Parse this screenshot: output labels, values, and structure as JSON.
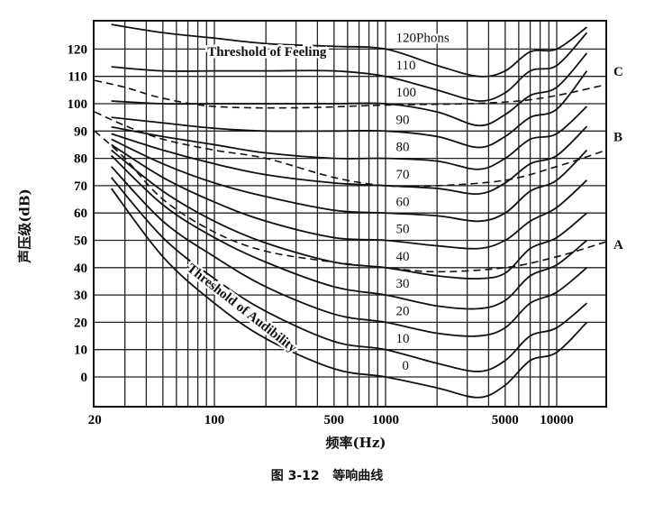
{
  "chart_data": {
    "type": "line",
    "title": "",
    "caption": "图 3-12   等响曲线",
    "xlabel": "频率(Hz)",
    "ylabel": "声压级(dB)",
    "xscale": "log",
    "xlim": [
      20,
      19500
    ],
    "ylim": [
      -11,
      130.5
    ],
    "grid": true,
    "x_ticks": [
      20,
      100,
      500,
      1000,
      5000,
      10000
    ],
    "x_tick_labels": [
      "20",
      "100",
      "500",
      "1000",
      "5000",
      "10000"
    ],
    "y_ticks": [
      0,
      10,
      20,
      30,
      40,
      50,
      60,
      70,
      80,
      90,
      100,
      110,
      120
    ],
    "y_tick_labels": [
      "0",
      "10",
      "20",
      "30",
      "40",
      "50",
      "60",
      "70",
      "80",
      "90",
      "100",
      "110",
      "120"
    ],
    "x": [
      25,
      50,
      100,
      200,
      500,
      1000,
      2000,
      3500,
      5000,
      7000,
      10000,
      15000
    ],
    "series": [
      {
        "name": "0",
        "label": "0",
        "values": [
          69,
          44,
          27,
          14,
          3,
          0,
          -4,
          -7.5,
          -3,
          6,
          9,
          20
        ]
      },
      {
        "name": "10",
        "label": "10",
        "values": [
          73,
          51,
          36,
          24,
          13,
          10,
          5,
          2,
          6,
          15,
          18,
          27
        ]
      },
      {
        "name": "20",
        "label": "20",
        "values": [
          77,
          57,
          44,
          33,
          23,
          20,
          16,
          15,
          18,
          27,
          31,
          40
        ]
      },
      {
        "name": "30",
        "label": "30",
        "values": [
          81,
          63,
          51,
          42,
          33,
          30,
          26,
          25,
          28,
          37,
          41,
          50
        ]
      },
      {
        "name": "40",
        "label": "40",
        "values": [
          83,
          68,
          57,
          49,
          42,
          40,
          37,
          36,
          38,
          47,
          51,
          60
        ]
      },
      {
        "name": "50",
        "label": "50",
        "values": [
          85,
          73,
          64,
          57,
          51,
          50,
          48,
          47,
          50,
          57,
          62,
          72
        ]
      },
      {
        "name": "60",
        "label": "60",
        "values": [
          87,
          78,
          71,
          66,
          61,
          60,
          59,
          57,
          60,
          68,
          72,
          83
        ]
      },
      {
        "name": "70",
        "label": "70",
        "values": [
          89,
          83,
          78,
          74,
          71,
          70,
          69,
          67,
          71,
          78,
          81,
          91.7
        ]
      },
      {
        "name": "80",
        "label": "80",
        "values": [
          91.5,
          88,
          85,
          82,
          80,
          80,
          79,
          76,
          80,
          87,
          89,
          99
        ]
      },
      {
        "name": "90",
        "label": "90",
        "values": [
          95,
          93,
          91,
          90,
          90,
          90,
          88,
          84,
          88,
          95,
          98,
          112
        ]
      },
      {
        "name": "100",
        "label": "100",
        "values": [
          101,
          100,
          100,
          100,
          100,
          100,
          97,
          92,
          96,
          103,
          106,
          118.5
        ]
      },
      {
        "name": "110",
        "label": "110",
        "values": [
          113.5,
          112,
          112,
          112,
          112,
          110,
          105,
          101,
          104,
          112,
          114,
          126
        ]
      },
      {
        "name": "120",
        "label": "120Phons",
        "values": [
          129,
          126,
          124,
          122,
          121,
          120,
          114,
          110,
          112,
          119,
          120,
          128
        ]
      }
    ],
    "weighting_curves": [
      {
        "name": "A",
        "label": "A",
        "points": [
          [
            20,
            90
          ],
          [
            30,
            80
          ],
          [
            50,
            65
          ],
          [
            100,
            53
          ],
          [
            200,
            46
          ],
          [
            500,
            42
          ],
          [
            1000,
            40
          ],
          [
            2000,
            38.5
          ],
          [
            5000,
            40
          ],
          [
            10000,
            44
          ],
          [
            19500,
            49.5
          ]
        ]
      },
      {
        "name": "B",
        "label": "B",
        "points": [
          [
            20,
            97
          ],
          [
            30,
            92
          ],
          [
            50,
            87
          ],
          [
            100,
            83
          ],
          [
            200,
            80
          ],
          [
            500,
            73
          ],
          [
            1000,
            70
          ],
          [
            2000,
            70
          ],
          [
            5000,
            72
          ],
          [
            10000,
            77
          ],
          [
            19500,
            83
          ]
        ]
      },
      {
        "name": "C",
        "label": "C",
        "points": [
          [
            20,
            108.5
          ],
          [
            30,
            106
          ],
          [
            50,
            102
          ],
          [
            100,
            99
          ],
          [
            300,
            98.5
          ],
          [
            1000,
            99.5
          ],
          [
            3000,
            100
          ],
          [
            6000,
            101
          ],
          [
            10000,
            103
          ],
          [
            19500,
            107
          ]
        ]
      }
    ],
    "annotations": [
      {
        "text": "Threshold of Feeling",
        "x": 91,
        "y": 117.5,
        "rotation": 0
      },
      {
        "text": "Threshold of Audibility",
        "x": 140,
        "y": 24,
        "rotation": 38
      }
    ]
  }
}
